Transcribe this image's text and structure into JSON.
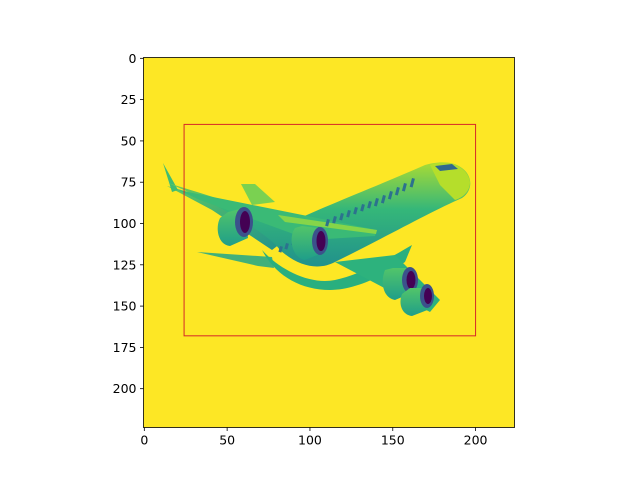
{
  "chart_data": {
    "type": "image",
    "title": "",
    "xlabel": "",
    "ylabel": "",
    "image_extent": {
      "x": [
        -0.5,
        223.5
      ],
      "y": [
        223.5,
        -0.5
      ]
    },
    "y_inverted": true,
    "colormap": "viridis",
    "background_value_color": "#fde725",
    "xticks": [
      0,
      50,
      100,
      150,
      200
    ],
    "yticks": [
      0,
      25,
      50,
      75,
      100,
      125,
      150,
      175,
      200
    ],
    "bounding_box": {
      "x0": 24,
      "y0": 40,
      "x1": 200,
      "y1": 168,
      "color": "#d62728"
    },
    "content": "airplane (grayscale image rendered with viridis colormap)",
    "grid": false
  }
}
